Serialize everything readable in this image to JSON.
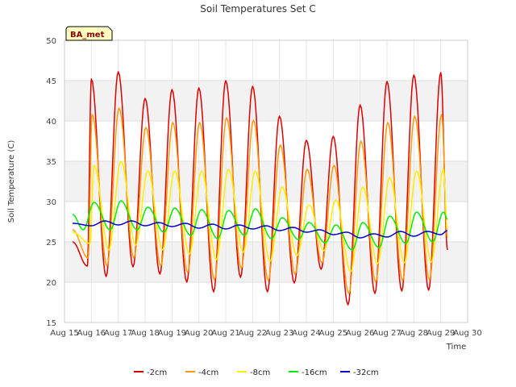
{
  "chart_data": {
    "type": "line",
    "title": "Soil Temperatures Set C",
    "xlabel": "Time",
    "ylabel": "Soil Temperature (C)",
    "ylim": [
      15,
      50
    ],
    "yticks": [
      15,
      20,
      25,
      30,
      35,
      40,
      45,
      50
    ],
    "xlim": [
      15,
      30
    ],
    "xticks": [
      {
        "day": 15,
        "label": "Aug 15"
      },
      {
        "day": 16,
        "label": "Aug 16"
      },
      {
        "day": 17,
        "label": "Aug 17"
      },
      {
        "day": 18,
        "label": "Aug 18"
      },
      {
        "day": 19,
        "label": "Aug 19"
      },
      {
        "day": 20,
        "label": "Aug 20"
      },
      {
        "day": 21,
        "label": "Aug 21"
      },
      {
        "day": 22,
        "label": "Aug 22"
      },
      {
        "day": 23,
        "label": "Aug 23"
      },
      {
        "day": 24,
        "label": "Aug 24"
      },
      {
        "day": 25,
        "label": "Aug 25"
      },
      {
        "day": 26,
        "label": "Aug 26"
      },
      {
        "day": 27,
        "label": "Aug 27"
      },
      {
        "day": 28,
        "label": "Aug 28"
      },
      {
        "day": 29,
        "label": "Aug 29"
      },
      {
        "day": 30,
        "label": "Aug 30"
      }
    ],
    "grid": true,
    "banding": "alternate-horizontal-bands",
    "legend_position": "bottom-center",
    "annotation": "BA_met",
    "series": [
      {
        "name": "-2cm",
        "color": "#dd0000",
        "start": 25.0,
        "end": 24.0,
        "min_times": [
          15.85,
          16.55,
          17.55,
          18.55,
          19.55,
          20.55,
          21.55,
          22.55,
          23.55,
          24.55,
          25.55,
          26.55,
          27.55,
          28.55
        ],
        "mins": [
          22.0,
          20.7,
          21.9,
          21.0,
          20.0,
          18.8,
          20.6,
          18.8,
          19.9,
          21.6,
          17.2,
          18.6,
          18.9,
          19.0
        ],
        "max_times": [
          16.0,
          17.0,
          18.0,
          19.0,
          20.0,
          21.0,
          22.0,
          23.0,
          24.0,
          25.0,
          26.0,
          27.0,
          28.0,
          29.0
        ],
        "maxs": [
          45.2,
          46.1,
          42.8,
          43.9,
          44.1,
          45.0,
          44.3,
          40.6,
          37.6,
          38.1,
          42.0,
          44.9,
          45.7,
          46.0
        ]
      },
      {
        "name": "-4cm",
        "color": "#ff9900",
        "start": 26.5,
        "end": 25.5,
        "min_times": [
          15.88,
          16.58,
          17.58,
          18.58,
          19.58,
          20.58,
          21.58,
          22.58,
          23.58,
          24.58,
          25.58,
          26.58,
          27.58,
          28.58
        ],
        "mins": [
          23.0,
          22.0,
          23.0,
          22.0,
          21.2,
          20.3,
          21.7,
          20.2,
          21.0,
          22.4,
          18.6,
          20.0,
          20.2,
          20.3
        ],
        "max_times": [
          16.03,
          17.03,
          18.03,
          19.03,
          20.03,
          21.03,
          22.03,
          23.03,
          24.03,
          25.03,
          26.03,
          27.03,
          28.03,
          29.03
        ],
        "maxs": [
          40.8,
          41.6,
          39.2,
          39.8,
          39.8,
          40.4,
          40.1,
          37.0,
          34.0,
          34.5,
          37.5,
          39.8,
          40.6,
          40.8
        ]
      },
      {
        "name": "-8cm",
        "color": "#ffee00",
        "start": 26.2,
        "end": 26.5,
        "min_times": [
          15.95,
          16.65,
          17.65,
          18.65,
          19.65,
          20.65,
          21.65,
          22.65,
          23.65,
          24.65,
          25.65,
          26.65,
          27.65,
          28.65
        ],
        "mins": [
          24.8,
          24.0,
          24.6,
          24.0,
          23.5,
          22.8,
          23.7,
          22.6,
          23.3,
          23.9,
          21.3,
          22.3,
          22.4,
          22.5
        ],
        "max_times": [
          16.1,
          17.1,
          18.1,
          19.1,
          20.1,
          21.1,
          22.1,
          23.1,
          24.1,
          25.1,
          26.1,
          27.1,
          28.1,
          29.1
        ],
        "maxs": [
          34.5,
          35.0,
          33.8,
          33.8,
          33.8,
          34.0,
          33.8,
          31.8,
          29.6,
          30.2,
          31.8,
          33.0,
          33.8,
          34.0
        ]
      },
      {
        "name": "-16cm",
        "color": "#00ee00",
        "start": 28.4,
        "end": 27.8,
        "min_times": [
          15.7,
          16.7,
          17.7,
          18.7,
          19.7,
          20.7,
          21.7,
          22.7,
          23.7,
          24.7,
          25.7,
          26.7,
          27.7,
          28.7
        ],
        "mins": [
          26.5,
          26.5,
          26.5,
          26.2,
          25.8,
          25.4,
          25.8,
          25.4,
          25.3,
          24.9,
          24.0,
          24.3,
          24.8,
          25.0
        ],
        "max_times": [
          16.1,
          17.1,
          18.1,
          19.1,
          20.1,
          21.1,
          22.1,
          23.1,
          24.1,
          25.1,
          26.1,
          27.1,
          28.1,
          29.1
        ],
        "maxs": [
          29.9,
          30.1,
          29.3,
          29.2,
          29.0,
          28.9,
          29.1,
          28.0,
          27.4,
          27.1,
          27.4,
          28.2,
          28.7,
          28.7
        ]
      },
      {
        "name": "-32cm",
        "color": "#0000cc",
        "start": 27.3,
        "end": 26.4,
        "min_times": [
          16.0,
          17.0,
          18.0,
          19.0,
          20.0,
          21.0,
          22.0,
          23.0,
          24.0,
          25.0,
          26.0,
          27.0,
          28.0,
          29.0
        ],
        "mins": [
          27.0,
          27.1,
          27.0,
          26.9,
          26.7,
          26.6,
          26.6,
          26.4,
          26.2,
          25.9,
          25.5,
          25.6,
          25.7,
          25.9
        ],
        "max_times": [
          16.5,
          17.5,
          18.5,
          19.5,
          20.5,
          21.5,
          22.5,
          23.5,
          24.5,
          25.5,
          26.5,
          27.5,
          28.5,
          29.5
        ],
        "maxs": [
          27.6,
          27.6,
          27.4,
          27.3,
          27.2,
          27.1,
          27.0,
          26.8,
          26.5,
          26.2,
          26.0,
          26.3,
          26.3,
          26.4
        ]
      }
    ]
  }
}
